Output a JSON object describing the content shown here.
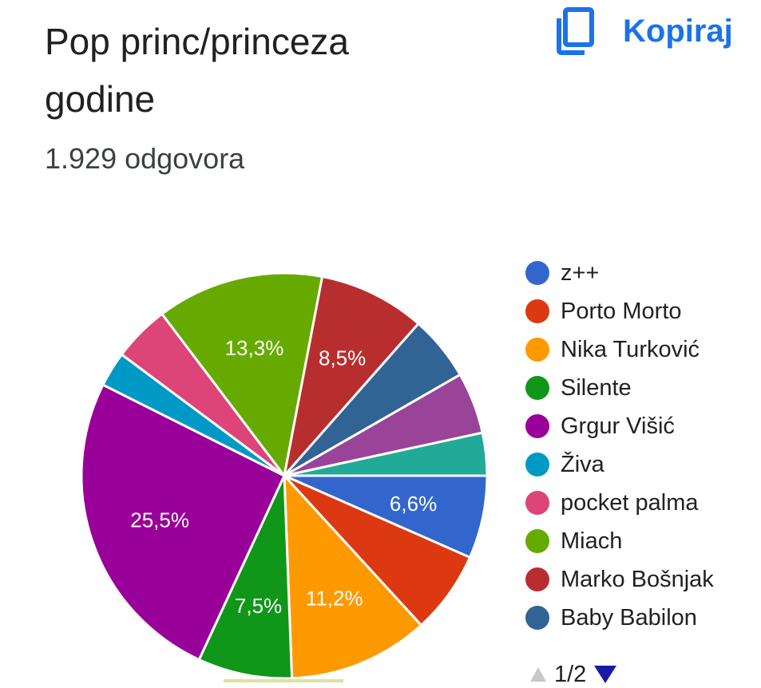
{
  "header": {
    "title": "Pop princ/princeza godine",
    "copy_label": "Kopiraj",
    "copy_icon": "copy-icon",
    "accent": "#1a73e8"
  },
  "summary": {
    "responses": "1.929 odgovora"
  },
  "chart_data": {
    "type": "pie",
    "start_at": "3 o'clock, clockwise",
    "slices": [
      {
        "label": "z++",
        "value": 6.6,
        "color": "#3366cc",
        "data_label": "6,6%"
      },
      {
        "label": "Porto Morto",
        "value": 6.6,
        "color": "#dc3912",
        "data_label": ""
      },
      {
        "label": "Nika Turković",
        "value": 11.2,
        "color": "#ff9900",
        "data_label": "11,2%"
      },
      {
        "label": "Silente",
        "value": 7.5,
        "color": "#109618",
        "data_label": "7,5%"
      },
      {
        "label": "Grgur Višić",
        "value": 25.5,
        "color": "#990099",
        "data_label": "25,5%"
      },
      {
        "label": "Živa",
        "value": 2.8,
        "color": "#0099c6",
        "data_label": ""
      },
      {
        "label": "pocket palma",
        "value": 4.5,
        "color": "#dd4477",
        "data_label": ""
      },
      {
        "label": "Miach",
        "value": 13.3,
        "color": "#66aa00",
        "data_label": "13,3%"
      },
      {
        "label": "Marko Bošnjak",
        "value": 8.5,
        "color": "#b82e2e",
        "data_label": "8,5%"
      },
      {
        "label": "Baby Babilon",
        "value": 5.2,
        "color": "#316395",
        "data_label": ""
      },
      {
        "label": "",
        "value": 4.9,
        "color": "#994499",
        "data_label": ""
      },
      {
        "label": "",
        "value": 3.4,
        "color": "#22aa99",
        "data_label": ""
      }
    ],
    "legend": {
      "placement": "right",
      "items": [
        {
          "label": "z++",
          "color": "#3366cc"
        },
        {
          "label": "Porto Morto",
          "color": "#dc3912"
        },
        {
          "label": "Nika Turković",
          "color": "#ff9900"
        },
        {
          "label": "Silente",
          "color": "#109618"
        },
        {
          "label": "Grgur Višić",
          "color": "#990099"
        },
        {
          "label": "Živa",
          "color": "#0099c6"
        },
        {
          "label": "pocket palma",
          "color": "#dd4477"
        },
        {
          "label": "Miach",
          "color": "#66aa00"
        },
        {
          "label": "Marko Bošnjak",
          "color": "#b82e2e"
        },
        {
          "label": "Baby Babilon",
          "color": "#316395"
        }
      ],
      "page": "1/2"
    }
  }
}
